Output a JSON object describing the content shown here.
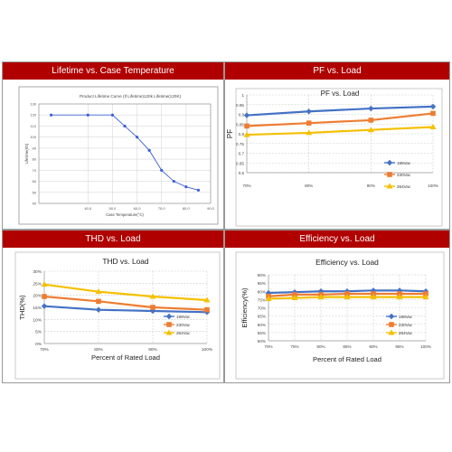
{
  "panels": [
    {
      "header": "Lifetime vs. Case Temperature"
    },
    {
      "header": "PF vs. Load"
    },
    {
      "header": "THD vs. Load"
    },
    {
      "header": "Efficiency vs. Load"
    }
  ],
  "chart_data": [
    {
      "type": "line",
      "title": "Product Lifetime Curve (If Lifetime)120k Lifetime(120K)",
      "xlabel": "Case Temperature(°C)",
      "ylabel": "Lifetime(Kh)",
      "x": [
        25,
        40,
        50,
        55,
        60,
        65,
        70,
        75,
        80,
        85
      ],
      "series": [
        {
          "values": [
            120,
            120,
            120,
            110,
            100,
            88,
            70,
            60,
            55,
            52
          ],
          "color": "#3b5fd6"
        }
      ],
      "xlim": [
        20,
        90
      ],
      "xticks": [
        "40.0",
        "50.0",
        "60.0",
        "70.0",
        "80.0",
        "90.0"
      ],
      "ylim": [
        40,
        130
      ],
      "yticks": [
        "40",
        "50",
        "60",
        "70",
        "80",
        "90",
        "100",
        "110",
        "120",
        "130"
      ],
      "grid": true
    },
    {
      "type": "line",
      "title": "PF vs. Load",
      "xlabel": "",
      "ylabel": "PF",
      "categories": [
        "70%",
        "80%",
        "90%",
        "100%"
      ],
      "series": [
        {
          "name": "198Vac",
          "values": [
            0.895,
            0.915,
            0.93,
            0.94
          ],
          "color": "#4472c4",
          "marker": "diamond"
        },
        {
          "name": "230Vac",
          "values": [
            0.84,
            0.855,
            0.87,
            0.905
          ],
          "color": "#ed7d31",
          "marker": "square"
        },
        {
          "name": "264Vac",
          "values": [
            0.795,
            0.805,
            0.82,
            0.835
          ],
          "color": "#f5c000",
          "marker": "triangle"
        }
      ],
      "ylim": [
        0.6,
        1.0
      ],
      "yticks": [
        "0.6",
        "0.65",
        "0.7",
        "0.75",
        "0.8",
        "0.85",
        "0.9",
        "0.95",
        "1"
      ],
      "grid": true,
      "legend": "right"
    },
    {
      "type": "line",
      "title": "THD vs. Load",
      "xlabel": "Percent of Rated Load",
      "ylabel": "THD(%)",
      "categories": [
        "70%",
        "80%",
        "90%",
        "100%"
      ],
      "series": [
        {
          "name": "198Vac",
          "values": [
            15.5,
            14,
            13.5,
            13
          ],
          "color": "#4472c4",
          "marker": "diamond"
        },
        {
          "name": "230Vac",
          "values": [
            19.5,
            17.5,
            15,
            14
          ],
          "color": "#ed7d31",
          "marker": "square"
        },
        {
          "name": "264Vac",
          "values": [
            24.5,
            21.5,
            19.5,
            18
          ],
          "color": "#f5c000",
          "marker": "triangle"
        }
      ],
      "ylim": [
        0,
        30
      ],
      "yticks": [
        "0%",
        "5%",
        "10%",
        "15%",
        "20%",
        "25%",
        "30%"
      ],
      "grid": true,
      "legend": "bottom-right"
    },
    {
      "type": "line",
      "title": "Efficiency vs. Load",
      "xlabel": "Percent of  Rated Load",
      "ylabel": "Efficiency(%)",
      "categories": [
        "70%",
        "75%",
        "80%",
        "85%",
        "90%",
        "95%",
        "100%"
      ],
      "series": [
        {
          "name": "198Vac",
          "values": [
            79,
            79.5,
            80,
            80,
            80.5,
            80.5,
            80
          ],
          "color": "#4472c4",
          "marker": "diamond"
        },
        {
          "name": "230Vac",
          "values": [
            77,
            78,
            78,
            78.5,
            78.5,
            78.5,
            78.5
          ],
          "color": "#ed7d31",
          "marker": "square"
        },
        {
          "name": "264Vac",
          "values": [
            75.5,
            76,
            76.5,
            76.5,
            76.5,
            76.5,
            76.5
          ],
          "color": "#f5c000",
          "marker": "triangle"
        }
      ],
      "ylim": [
        50,
        90
      ],
      "yticks": [
        "50%",
        "55%",
        "60%",
        "65%",
        "70%",
        "75%",
        "80%",
        "85%",
        "90%"
      ],
      "grid": true,
      "legend": "bottom-right"
    }
  ]
}
